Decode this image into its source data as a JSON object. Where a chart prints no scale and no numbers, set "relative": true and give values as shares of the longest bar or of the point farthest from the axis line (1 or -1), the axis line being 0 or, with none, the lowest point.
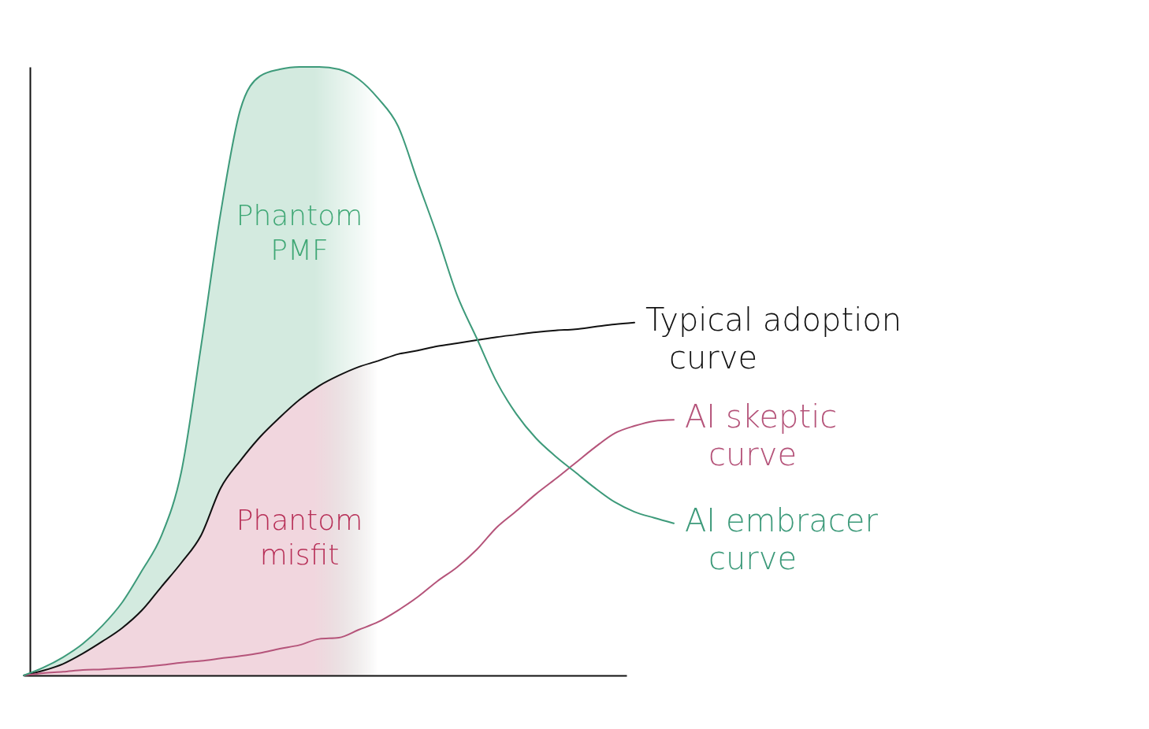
{
  "chart_data": {
    "type": "line",
    "relative": true,
    "categories": [
      null,
      null,
      null,
      null,
      null,
      null,
      null,
      null,
      null,
      null,
      null,
      null,
      null,
      null,
      null,
      null,
      null,
      null,
      null,
      null,
      null,
      null,
      null,
      null,
      null,
      null,
      null,
      null,
      null,
      null,
      null,
      null,
      null,
      null
    ],
    "series": [
      {
        "type": "area",
        "color": "#d3eadf",
        "values": [
          0,
          0.013,
          0.03,
          0.052,
          0.082,
          0.12,
          0.172,
          0.23,
          0.334,
          0.54,
          0.76,
          0.93,
          0.985,
          0.996,
          1,
          1,
          0.996,
          0.98,
          0.948,
          null,
          null,
          null,
          null,
          null,
          null,
          null,
          null,
          null,
          null,
          null,
          null,
          null,
          null,
          null
        ]
      },
      {
        "type": "area",
        "color": "#f1d6de",
        "values": [
          0,
          0.008,
          0.019,
          0.036,
          0.056,
          0.078,
          0.107,
          0.146,
          0.185,
          0.23,
          0.308,
          0.353,
          0.392,
          0.424,
          0.453,
          0.476,
          0.493,
          0.507,
          0.517,
          null,
          null,
          null,
          null,
          null,
          null,
          null,
          null,
          null,
          null,
          null,
          null,
          null,
          null,
          null
        ],
        "name": null
      },
      {
        "name": "Typical adoption curve",
        "color": "#111111",
        "values": [
          0,
          0.008,
          0.019,
          0.036,
          0.056,
          0.078,
          0.107,
          0.146,
          0.185,
          0.23,
          0.308,
          0.353,
          0.392,
          0.424,
          0.453,
          0.476,
          0.493,
          0.507,
          0.517,
          0.528,
          0.534,
          0.541,
          0.546,
          0.551,
          0.556,
          0.56,
          0.564,
          0.567,
          0.569,
          0.573,
          0.577,
          0.58,
          null,
          null
        ]
      },
      {
        "name": "AI skeptic curve",
        "color": "#b5547a",
        "values": [
          0,
          0.004,
          0.006,
          0.009,
          0.01,
          0.012,
          0.014,
          0.017,
          0.021,
          0.024,
          0.028,
          0.032,
          0.037,
          0.044,
          0.05,
          0.06,
          0.062,
          0.075,
          0.088,
          0.107,
          0.129,
          0.155,
          0.178,
          0.207,
          0.243,
          0.27,
          0.298,
          0.323,
          0.349,
          0.375,
          0.398,
          0.41,
          0.418,
          0.42
        ]
      },
      {
        "name": "AI embracer curve",
        "color": "#3d9a7a",
        "values": [
          0,
          0.013,
          0.03,
          0.052,
          0.082,
          0.12,
          0.172,
          0.23,
          0.334,
          0.54,
          0.76,
          0.93,
          0.985,
          0.996,
          1,
          1,
          0.996,
          0.98,
          0.948,
          0.903,
          0.812,
          0.722,
          0.625,
          0.554,
          0.483,
          0.43,
          0.39,
          0.36,
          0.334,
          0.308,
          0.285,
          0.269,
          0.259,
          0.25
        ]
      }
    ],
    "annotations": [
      "Phantom PMF",
      "Phantom misfit"
    ],
    "grid": false,
    "marker": "none",
    "line_style": "solid"
  }
}
